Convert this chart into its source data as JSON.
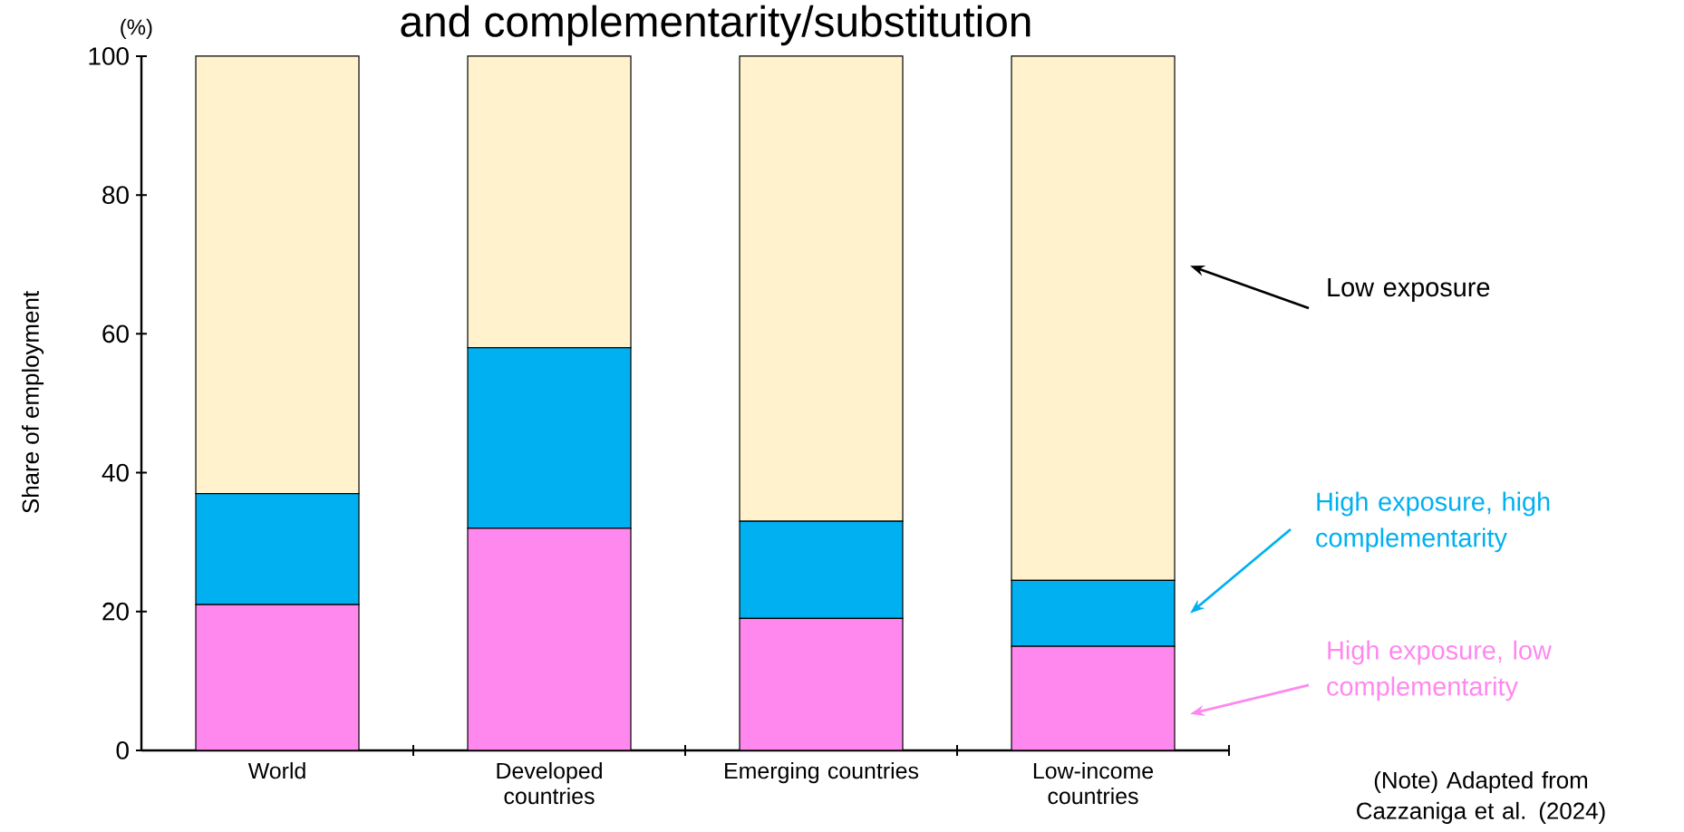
{
  "chart_data": {
    "type": "bar",
    "stacked": true,
    "title": "and complementarity/substitution",
    "ylabel": "Share of employment",
    "annotations": [
      "(%)",
      "(Note) Adapted from Cazzaniga et al. (2024)"
    ],
    "categories": [
      "World",
      "Developed countries",
      "Emerging countries",
      "Low-income countries"
    ],
    "series": [
      {
        "name": "High exposure, low complementarity",
        "color": "#ff88ee",
        "values": [
          21,
          32,
          19,
          15
        ]
      },
      {
        "name": "High exposure, high complementarity",
        "color": "#00b0f0",
        "values": [
          16,
          26,
          14,
          9.5
        ]
      },
      {
        "name": "Low exposure",
        "color": "#fff2cc",
        "values": [
          63,
          42,
          67,
          75.5
        ]
      }
    ],
    "ylim": [
      0,
      100
    ],
    "yticks": [
      0,
      20,
      40,
      60,
      80,
      100
    ]
  }
}
